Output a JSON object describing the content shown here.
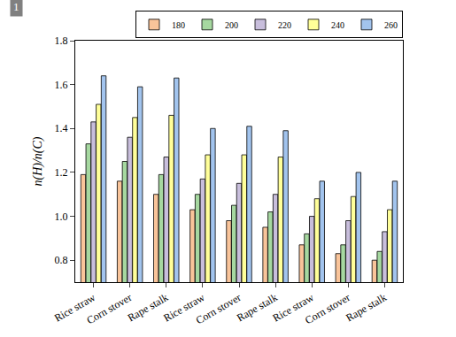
{
  "chart_data": {
    "type": "bar",
    "y_label": "n(H)/n(C)",
    "annotations": [
      "1"
    ],
    "categories": [
      "Rice straw",
      "Corn stover",
      "Rape stalk",
      "Rice straw",
      "Corn stover",
      "Rape stalk",
      "Rice straw",
      "Corn stover",
      "Rape stalk"
    ],
    "series": [
      {
        "name": "180",
        "color": "#f9c49a",
        "values": [
          1.19,
          1.16,
          1.1,
          1.03,
          0.98,
          0.95,
          0.87,
          0.83,
          0.8
        ]
      },
      {
        "name": "200",
        "color": "#a6d8a0",
        "values": [
          1.33,
          1.25,
          1.19,
          1.1,
          1.05,
          1.02,
          0.92,
          0.87,
          0.84
        ]
      },
      {
        "name": "220",
        "color": "#c8bedc",
        "values": [
          1.43,
          1.36,
          1.27,
          1.17,
          1.15,
          1.1,
          1.0,
          0.98,
          0.93
        ]
      },
      {
        "name": "240",
        "color": "#ffff99",
        "values": [
          1.51,
          1.45,
          1.46,
          1.28,
          1.28,
          1.27,
          1.08,
          1.09,
          1.03
        ]
      },
      {
        "name": "260",
        "color": "#a2c4ee",
        "values": [
          1.64,
          1.59,
          1.63,
          1.4,
          1.41,
          1.39,
          1.16,
          1.2,
          1.16
        ]
      }
    ],
    "ylim": [
      0.7,
      1.8
    ],
    "yticks": [
      0.8,
      {
        "value": 1,
        "label": "1.0"
      },
      1.2,
      1.4,
      1.6,
      1.8
    ],
    "grid": false,
    "legend": "upper right"
  }
}
